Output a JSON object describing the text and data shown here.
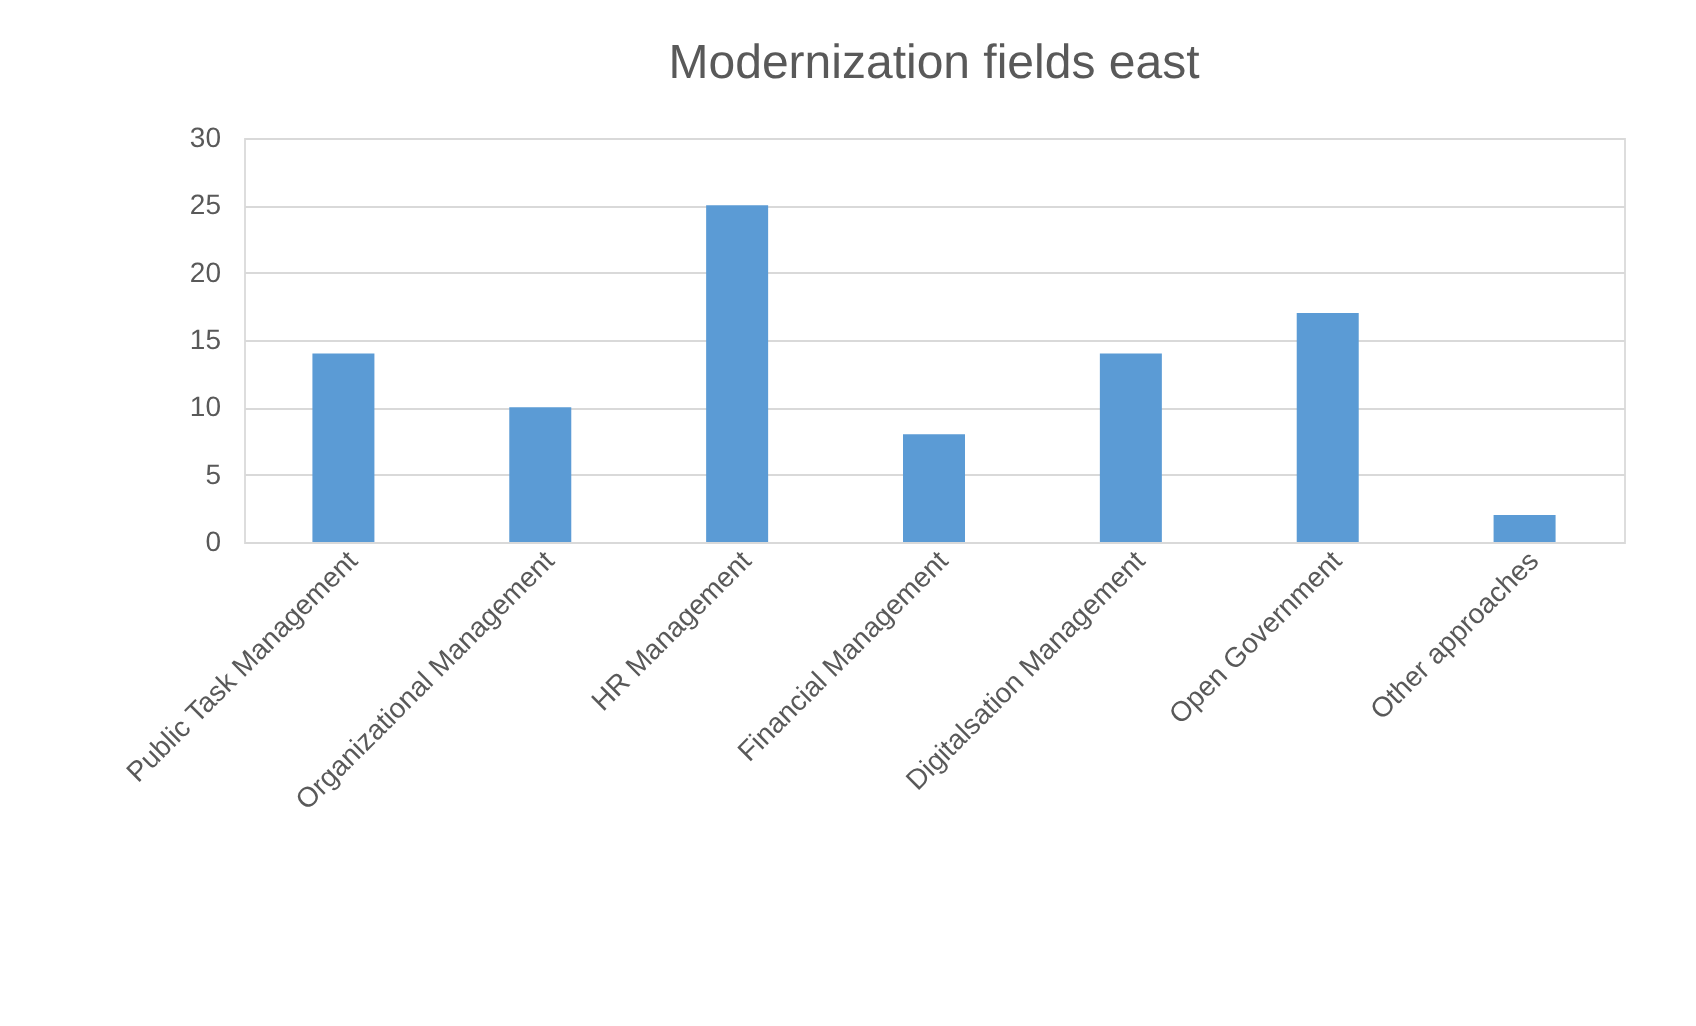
{
  "chart_data": {
    "type": "bar",
    "title": "Modernization fields east",
    "categories": [
      "Public Task Management",
      "Organizational Management",
      "HR Management",
      "Financial Management",
      "Digitalsation Management",
      "Open Government",
      "Other approaches"
    ],
    "values": [
      14,
      10,
      25,
      8,
      14,
      17,
      2
    ],
    "color": "#5b9bd5",
    "ylim": [
      0,
      30
    ],
    "yticks": [
      0,
      5,
      10,
      15,
      20,
      25,
      30
    ],
    "grid": "y"
  }
}
